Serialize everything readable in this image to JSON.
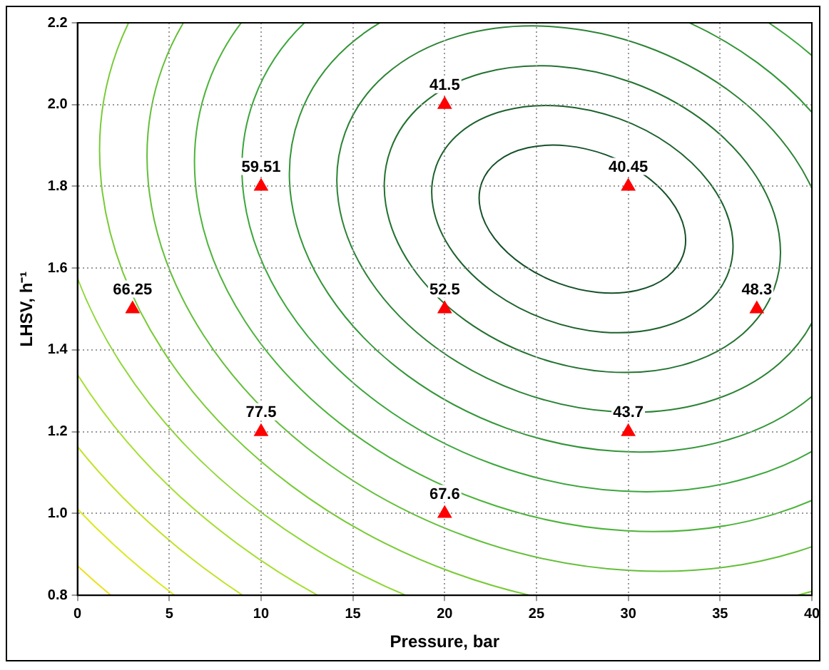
{
  "chart_data": {
    "type": "scatter",
    "xlabel": "Pressure, bar",
    "ylabel": "LHSV, h⁻¹",
    "x": [
      3,
      10,
      10,
      20,
      20,
      20,
      30,
      30,
      37
    ],
    "values": [
      1.5,
      1.8,
      1.2,
      2.0,
      1.5,
      1.0,
      1.8,
      1.2,
      1.5
    ],
    "annotations": [
      {
        "text": "66.25",
        "x": 3,
        "y": 1.5
      },
      {
        "text": "59.51",
        "x": 10,
        "y": 1.8
      },
      {
        "text": "77.5",
        "x": 10,
        "y": 1.2
      },
      {
        "text": "41.5",
        "x": 20,
        "y": 2.0
      },
      {
        "text": "52.5",
        "x": 20,
        "y": 1.5
      },
      {
        "text": "67.6",
        "x": 20,
        "y": 1.0
      },
      {
        "text": "40.45",
        "x": 30,
        "y": 1.8
      },
      {
        "text": "43.7",
        "x": 30,
        "y": 1.2
      },
      {
        "text": "48.3",
        "x": 37,
        "y": 1.5
      }
    ],
    "color": "#ff0000",
    "marker": "triangle",
    "xlim": [
      0,
      40
    ],
    "ylim": [
      0.8,
      2.2
    ],
    "xticks": [
      0,
      5,
      10,
      15,
      20,
      25,
      30,
      35,
      40
    ],
    "yticks": [
      {
        "value": 0.8,
        "label": "0.8"
      },
      {
        "value": 1.0,
        "label": "1.0"
      },
      {
        "value": 1.2,
        "label": "1.2"
      },
      {
        "value": 1.4,
        "label": "1.4"
      },
      {
        "value": 1.6,
        "label": "1.6"
      },
      {
        "value": 1.8,
        "label": "1.8"
      },
      {
        "value": 2.0,
        "label": "2.0"
      },
      {
        "value": 2.2,
        "label": "2.2"
      }
    ],
    "grid": true
  }
}
